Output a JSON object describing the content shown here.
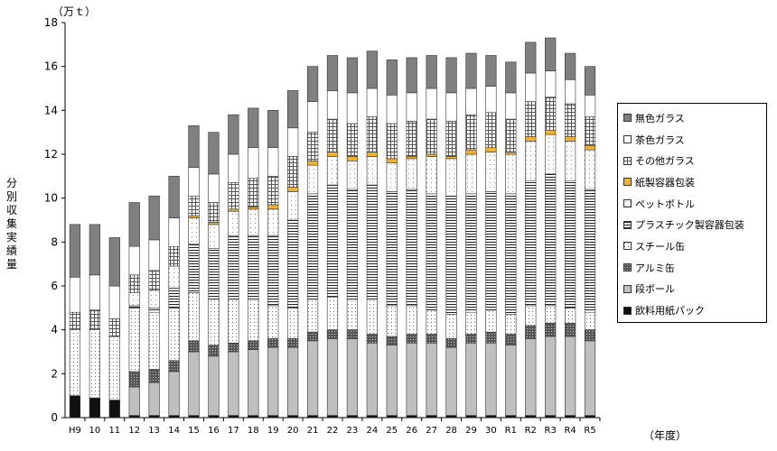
{
  "chart_data": {
    "type": "bar",
    "stacked": true,
    "unit_label": "（万ｔ）",
    "ylabel": "分別収集実績量",
    "xlabel": "（年度）",
    "ylim": [
      0,
      18
    ],
    "yticks": [
      0,
      2,
      4,
      6,
      8,
      10,
      12,
      14,
      16,
      18
    ],
    "grid": false,
    "legend_position": "right",
    "categories": [
      "H9",
      "10",
      "11",
      "12",
      "13",
      "14",
      "15",
      "16",
      "17",
      "18",
      "19",
      "20",
      "21",
      "22",
      "23",
      "24",
      "25",
      "26",
      "27",
      "28",
      "29",
      "30",
      "R1",
      "R2",
      "R3",
      "R4",
      "R5"
    ],
    "series": [
      {
        "name": "飲料用紙パック",
        "color": "#111111",
        "pattern": "solid",
        "values": [
          1.0,
          0.9,
          0.8,
          0.1,
          0.1,
          0.1,
          0.1,
          0.1,
          0.1,
          0.1,
          0.1,
          0.1,
          0.1,
          0.1,
          0.1,
          0.1,
          0.1,
          0.1,
          0.1,
          0.1,
          0.1,
          0.1,
          0.1,
          0.1,
          0.1,
          0.1,
          0.1
        ]
      },
      {
        "name": "段ボール",
        "color": "#bfbfbf",
        "pattern": "solid",
        "values": [
          0.0,
          0.0,
          0.0,
          1.3,
          1.5,
          2.0,
          2.9,
          2.7,
          2.9,
          3.0,
          3.1,
          3.1,
          3.4,
          3.5,
          3.5,
          3.3,
          3.2,
          3.3,
          3.3,
          3.1,
          3.3,
          3.3,
          3.2,
          3.5,
          3.6,
          3.6,
          3.4
        ]
      },
      {
        "name": "アルミ缶",
        "color": "#595959",
        "pattern": "speckle",
        "values": [
          0.0,
          0.0,
          0.0,
          0.7,
          0.6,
          0.5,
          0.5,
          0.5,
          0.4,
          0.4,
          0.4,
          0.4,
          0.4,
          0.4,
          0.4,
          0.4,
          0.4,
          0.4,
          0.4,
          0.4,
          0.4,
          0.5,
          0.5,
          0.6,
          0.6,
          0.6,
          0.5
        ]
      },
      {
        "name": "スチール缶",
        "color": "#ffffff",
        "pattern": "dots",
        "values": [
          3.0,
          3.1,
          2.9,
          2.9,
          2.6,
          2.4,
          2.2,
          2.1,
          2.0,
          1.9,
          1.5,
          1.4,
          1.5,
          1.5,
          1.4,
          1.6,
          1.4,
          1.3,
          1.1,
          1.1,
          1.0,
          1.0,
          0.9,
          0.9,
          0.8,
          0.7,
          0.8
        ]
      },
      {
        "name": "プラスチック製容器包装",
        "color": "#ffffff",
        "pattern": "hlines",
        "values": [
          0.0,
          0.0,
          0.0,
          0.1,
          0.2,
          0.9,
          2.2,
          2.3,
          2.9,
          2.9,
          3.2,
          4.0,
          4.8,
          5.1,
          5.0,
          5.2,
          5.2,
          5.3,
          5.3,
          5.4,
          5.4,
          5.4,
          5.5,
          5.7,
          6.0,
          5.8,
          5.6
        ]
      },
      {
        "name": "ペットボトル",
        "color": "#ffffff",
        "pattern": "dots2",
        "values": [
          0.0,
          0.0,
          0.0,
          0.6,
          0.8,
          1.0,
          1.2,
          1.1,
          1.1,
          1.2,
          1.2,
          1.3,
          1.3,
          1.3,
          1.3,
          1.3,
          1.3,
          1.4,
          1.7,
          1.7,
          1.8,
          1.8,
          1.8,
          1.8,
          1.8,
          1.8,
          1.8
        ]
      },
      {
        "name": "紙製容器包装",
        "color": "#f2b035",
        "pattern": "solid",
        "values": [
          0.0,
          0.0,
          0.0,
          0.0,
          0.0,
          0.0,
          0.1,
          0.1,
          0.1,
          0.1,
          0.2,
          0.2,
          0.2,
          0.2,
          0.2,
          0.2,
          0.2,
          0.1,
          0.1,
          0.1,
          0.2,
          0.2,
          0.1,
          0.2,
          0.2,
          0.2,
          0.2
        ]
      },
      {
        "name": "その他ガラス",
        "color": "#ffffff",
        "pattern": "grid",
        "values": [
          0.8,
          0.9,
          0.8,
          0.8,
          0.9,
          0.9,
          0.9,
          0.9,
          1.2,
          1.3,
          1.3,
          1.4,
          1.3,
          1.5,
          1.5,
          1.6,
          1.6,
          1.6,
          1.6,
          1.6,
          1.6,
          1.6,
          1.5,
          1.6,
          1.5,
          1.5,
          1.3
        ]
      },
      {
        "name": "茶色ガラス",
        "color": "#ffffff",
        "pattern": "solid",
        "values": [
          1.6,
          1.6,
          1.5,
          1.3,
          1.4,
          1.3,
          1.3,
          1.3,
          1.3,
          1.4,
          1.3,
          1.3,
          1.4,
          1.3,
          1.4,
          1.3,
          1.3,
          1.3,
          1.4,
          1.3,
          1.2,
          1.2,
          1.2,
          1.3,
          1.2,
          1.1,
          1.0
        ]
      },
      {
        "name": "無色ガラス",
        "color": "#808080",
        "pattern": "solid",
        "values": [
          2.4,
          2.3,
          2.2,
          2.0,
          2.0,
          1.9,
          1.9,
          1.9,
          1.8,
          1.8,
          1.7,
          1.7,
          1.6,
          1.6,
          1.6,
          1.7,
          1.6,
          1.6,
          1.5,
          1.6,
          1.6,
          1.4,
          1.4,
          1.4,
          1.5,
          1.2,
          1.3
        ]
      }
    ]
  }
}
